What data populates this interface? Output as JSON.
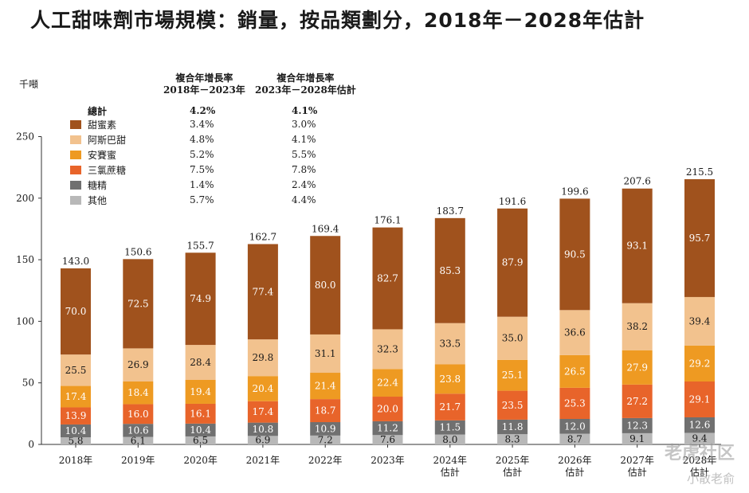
{
  "title": "人工甜味劑市場規模：銷量，按品類劃分，2018年－2028年估計",
  "unit": "千噸",
  "cagr_headers": [
    {
      "line1": "複合年增長率",
      "line2": "2018年－2023年"
    },
    {
      "line1": "複合年增長率",
      "line2": "2023年－2028年估計"
    }
  ],
  "legend": {
    "total_label": "總計",
    "total_cagr": [
      "4.2%",
      "4.1%"
    ],
    "items": [
      {
        "label": "甜蜜素",
        "color": "#a0521d",
        "cagr": [
          "3.4%",
          "3.0%"
        ]
      },
      {
        "label": "阿斯巴甜",
        "color": "#f2c28e",
        "cagr": [
          "4.8%",
          "4.1%"
        ]
      },
      {
        "label": "安賽蜜",
        "color": "#ee9a22",
        "cagr": [
          "5.2%",
          "5.5%"
        ]
      },
      {
        "label": "三氯蔗糖",
        "color": "#e8642a",
        "cagr": [
          "7.5%",
          "7.8%"
        ]
      },
      {
        "label": "糖精",
        "color": "#707070",
        "cagr": [
          "1.4%",
          "2.4%"
        ]
      },
      {
        "label": "其他",
        "color": "#b8b8b8",
        "cagr": [
          "5.7%",
          "4.4%"
        ]
      }
    ]
  },
  "chart_data": {
    "type": "bar",
    "stacked": true,
    "ylim": [
      0,
      250
    ],
    "yticks": [
      0,
      50,
      100,
      150,
      200,
      250
    ],
    "categories": [
      [
        "2018年"
      ],
      [
        "2019年"
      ],
      [
        "2020年"
      ],
      [
        "2021年"
      ],
      [
        "2022年"
      ],
      [
        "2023年"
      ],
      [
        "2024年",
        "估計"
      ],
      [
        "2025年",
        "估計"
      ],
      [
        "2026年",
        "估計"
      ],
      [
        "2027年",
        "估計"
      ],
      [
        "2028年",
        "估計"
      ]
    ],
    "totals": [
      "143.0",
      "150.6",
      "155.7",
      "162.7",
      "169.4",
      "176.1",
      "183.7",
      "191.6",
      "199.6",
      "207.6",
      "215.5"
    ],
    "series": [
      {
        "name": "其他",
        "color": "#b8b8b8",
        "values": [
          5.8,
          6.1,
          6.5,
          6.9,
          7.2,
          7.6,
          8.0,
          8.3,
          8.7,
          9.1,
          9.4
        ],
        "labels": [
          "5.8",
          "6.1",
          "6.5",
          "6.9",
          "7.2",
          "7.6",
          "8.0",
          "8.3",
          "8.7",
          "9.1",
          "9.4"
        ]
      },
      {
        "name": "糖精",
        "color": "#707070",
        "values": [
          10.4,
          10.6,
          10.4,
          10.8,
          10.9,
          11.2,
          11.5,
          11.8,
          12.0,
          12.3,
          12.6
        ],
        "labels": [
          "10.4",
          "10.6",
          "10.4",
          "10.8",
          "10.9",
          "11.2",
          "11.5",
          "11.8",
          "12.0",
          "12.3",
          "12.6"
        ]
      },
      {
        "name": "三氯蔗糖",
        "color": "#e8642a",
        "values": [
          13.9,
          16.0,
          16.1,
          17.4,
          18.7,
          20.0,
          21.7,
          23.5,
          25.3,
          27.2,
          29.1
        ],
        "labels": [
          "13.9",
          "16.0",
          "16.1",
          "17.4",
          "18.7",
          "20.0",
          "21.7",
          "23.5",
          "25.3",
          "27.2",
          "29.1"
        ]
      },
      {
        "name": "安賽蜜",
        "color": "#ee9a22",
        "values": [
          17.4,
          18.4,
          19.4,
          20.4,
          21.4,
          22.4,
          23.8,
          25.1,
          26.5,
          27.9,
          29.2
        ],
        "labels": [
          "17.4",
          "18.4",
          "19.4",
          "20.4",
          "21.4",
          "22.4",
          "23.8",
          "25.1",
          "26.5",
          "27.9",
          "29.2"
        ]
      },
      {
        "name": "阿斯巴甜",
        "color": "#f2c28e",
        "values": [
          25.5,
          26.9,
          28.4,
          29.8,
          31.1,
          32.3,
          33.5,
          35.0,
          36.6,
          38.2,
          39.4
        ],
        "labels": [
          "25.5",
          "26.9",
          "28.4",
          "29.8",
          "31.1",
          "32.3",
          "33.5",
          "35.0",
          "36.6",
          "38.2",
          "39.4"
        ]
      },
      {
        "name": "甜蜜素",
        "color": "#a0521d",
        "values": [
          70.0,
          72.5,
          74.9,
          77.4,
          80.0,
          82.7,
          85.3,
          87.9,
          90.5,
          93.1,
          95.7
        ],
        "labels": [
          "70.0",
          "72.5",
          "74.9",
          "77.4",
          "80.0",
          "82.7",
          "85.3",
          "87.9",
          "90.5",
          "93.1",
          "95.7"
        ]
      }
    ]
  },
  "watermark": {
    "line1": "老虎社区",
    "line2": "小散老俞"
  }
}
